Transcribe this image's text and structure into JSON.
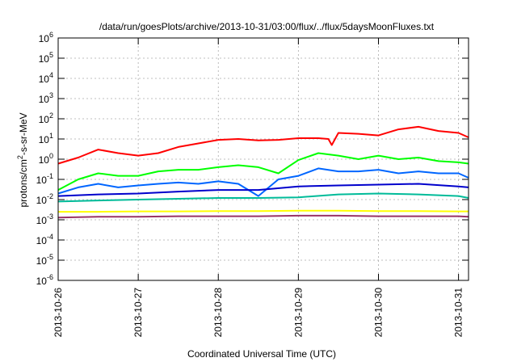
{
  "chart_data": {
    "type": "line",
    "title": "/data/run/goesPlots/archive/2013-10-31/03:00/flux/../flux/5daysMoonFluxes.txt",
    "xlabel": "Coordinated Universal Time (UTC)",
    "ylabel": {
      "base": "protons/cm",
      "sup": "2",
      "rest": "-s-sr-MeV"
    },
    "x_scale": "time",
    "xlim": [
      "2013-10-26T00:00",
      "2013-10-31T03:00"
    ],
    "x_ticks": [
      "2013-10-26",
      "2013-10-27",
      "2013-10-28",
      "2013-10-29",
      "2013-10-30",
      "2013-10-31"
    ],
    "y_scale": "log",
    "ylim": [
      1e-06,
      1000000.0
    ],
    "y_ticks": [
      {
        "base": "10",
        "exp": "-6",
        "value": 1e-06
      },
      {
        "base": "10",
        "exp": "-5",
        "value": 1e-05
      },
      {
        "base": "10",
        "exp": "-4",
        "value": 0.0001
      },
      {
        "base": "10",
        "exp": "-3",
        "value": 0.001
      },
      {
        "base": "10",
        "exp": "-2",
        "value": 0.01
      },
      {
        "base": "10",
        "exp": "-1",
        "value": 0.1
      },
      {
        "base": "10",
        "exp": "0",
        "value": 1.0
      },
      {
        "base": "10",
        "exp": "1",
        "value": 10.0
      },
      {
        "base": "10",
        "exp": "2",
        "value": 100.0
      },
      {
        "base": "10",
        "exp": "3",
        "value": 1000.0
      },
      {
        "base": "10",
        "exp": "4",
        "value": 10000.0
      },
      {
        "base": "10",
        "exp": "5",
        "value": 100000.0
      },
      {
        "base": "10",
        "exp": "6",
        "value": 1000000.0
      }
    ],
    "grid": true,
    "legend": "none",
    "series": [
      {
        "color": "#ff0000",
        "x": [
          "2013-10-26T00:00",
          "2013-10-26T06:00",
          "2013-10-26T12:00",
          "2013-10-26T18:00",
          "2013-10-27T00:00",
          "2013-10-27T06:00",
          "2013-10-27T12:00",
          "2013-10-27T18:00",
          "2013-10-28T00:00",
          "2013-10-28T06:00",
          "2013-10-28T12:00",
          "2013-10-28T18:00",
          "2013-10-29T00:00",
          "2013-10-29T06:00",
          "2013-10-29T09:00",
          "2013-10-29T10:00",
          "2013-10-29T12:00",
          "2013-10-29T18:00",
          "2013-10-30T00:00",
          "2013-10-30T06:00",
          "2013-10-30T12:00",
          "2013-10-30T18:00",
          "2013-10-31T00:00",
          "2013-10-31T03:00"
        ],
        "y": [
          0.6,
          1.2,
          3.0,
          2.0,
          1.5,
          2.0,
          4.0,
          6.0,
          9.0,
          10.0,
          8.5,
          9.0,
          11.0,
          11.0,
          10.0,
          5.0,
          20.0,
          18.0,
          15.0,
          30.0,
          40.0,
          25.0,
          20.0,
          12.0
        ]
      },
      {
        "color": "#00ff00",
        "x": [
          "2013-10-26T00:00",
          "2013-10-26T06:00",
          "2013-10-26T12:00",
          "2013-10-26T18:00",
          "2013-10-27T00:00",
          "2013-10-27T06:00",
          "2013-10-27T12:00",
          "2013-10-27T18:00",
          "2013-10-28T00:00",
          "2013-10-28T06:00",
          "2013-10-28T12:00",
          "2013-10-28T18:00",
          "2013-10-29T00:00",
          "2013-10-29T06:00",
          "2013-10-29T12:00",
          "2013-10-29T18:00",
          "2013-10-30T00:00",
          "2013-10-30T06:00",
          "2013-10-30T12:00",
          "2013-10-30T18:00",
          "2013-10-31T00:00",
          "2013-10-31T03:00"
        ],
        "y": [
          0.03,
          0.1,
          0.2,
          0.15,
          0.15,
          0.25,
          0.3,
          0.3,
          0.4,
          0.5,
          0.4,
          0.2,
          0.9,
          2.0,
          1.5,
          1.0,
          1.5,
          1.0,
          1.2,
          0.8,
          0.7,
          0.6
        ]
      },
      {
        "color": "#0066ff",
        "x": [
          "2013-10-26T00:00",
          "2013-10-26T06:00",
          "2013-10-26T12:00",
          "2013-10-26T18:00",
          "2013-10-27T00:00",
          "2013-10-27T06:00",
          "2013-10-27T12:00",
          "2013-10-27T18:00",
          "2013-10-28T00:00",
          "2013-10-28T06:00",
          "2013-10-28T12:00",
          "2013-10-28T18:00",
          "2013-10-29T00:00",
          "2013-10-29T06:00",
          "2013-10-29T12:00",
          "2013-10-29T18:00",
          "2013-10-30T00:00",
          "2013-10-30T06:00",
          "2013-10-30T12:00",
          "2013-10-30T18:00",
          "2013-10-31T00:00",
          "2013-10-31T03:00"
        ],
        "y": [
          0.02,
          0.04,
          0.06,
          0.04,
          0.05,
          0.06,
          0.07,
          0.06,
          0.08,
          0.06,
          0.015,
          0.1,
          0.15,
          0.35,
          0.25,
          0.25,
          0.3,
          0.2,
          0.25,
          0.2,
          0.2,
          0.12
        ]
      },
      {
        "color": "#0000cc",
        "x": [
          "2013-10-26T00:00",
          "2013-10-26T12:00",
          "2013-10-27T00:00",
          "2013-10-27T12:00",
          "2013-10-28T00:00",
          "2013-10-28T12:00",
          "2013-10-29T00:00",
          "2013-10-29T12:00",
          "2013-10-30T00:00",
          "2013-10-30T12:00",
          "2013-10-31T00:00",
          "2013-10-31T03:00"
        ],
        "y": [
          0.015,
          0.018,
          0.02,
          0.025,
          0.03,
          0.03,
          0.045,
          0.05,
          0.055,
          0.06,
          0.045,
          0.04
        ]
      },
      {
        "color": "#00bb99",
        "x": [
          "2013-10-26T00:00",
          "2013-10-26T12:00",
          "2013-10-27T00:00",
          "2013-10-27T12:00",
          "2013-10-28T00:00",
          "2013-10-28T12:00",
          "2013-10-29T00:00",
          "2013-10-29T12:00",
          "2013-10-30T00:00",
          "2013-10-30T12:00",
          "2013-10-31T00:00",
          "2013-10-31T03:00"
        ],
        "y": [
          0.008,
          0.009,
          0.01,
          0.011,
          0.012,
          0.012,
          0.013,
          0.018,
          0.02,
          0.018,
          0.015,
          0.012
        ]
      },
      {
        "color": "#ffff00",
        "x": [
          "2013-10-26T00:00",
          "2013-10-26T12:00",
          "2013-10-27T00:00",
          "2013-10-27T12:00",
          "2013-10-28T00:00",
          "2013-10-28T12:00",
          "2013-10-29T00:00",
          "2013-10-29T12:00",
          "2013-10-30T00:00",
          "2013-10-30T12:00",
          "2013-10-31T00:00",
          "2013-10-31T03:00"
        ],
        "y": [
          0.0025,
          0.0025,
          0.0026,
          0.0026,
          0.0027,
          0.0027,
          0.0028,
          0.0028,
          0.0027,
          0.0027,
          0.0026,
          0.0026
        ]
      },
      {
        "color": "#993366",
        "x": [
          "2013-10-26T00:00",
          "2013-10-26T12:00",
          "2013-10-27T00:00",
          "2013-10-27T12:00",
          "2013-10-28T00:00",
          "2013-10-28T12:00",
          "2013-10-29T00:00",
          "2013-10-29T12:00",
          "2013-10-30T00:00",
          "2013-10-30T12:00",
          "2013-10-31T00:00",
          "2013-10-31T03:00"
        ],
        "y": [
          0.0013,
          0.0014,
          0.0014,
          0.0015,
          0.0015,
          0.0015,
          0.0016,
          0.0016,
          0.0015,
          0.0015,
          0.0015,
          0.0014
        ]
      }
    ]
  }
}
